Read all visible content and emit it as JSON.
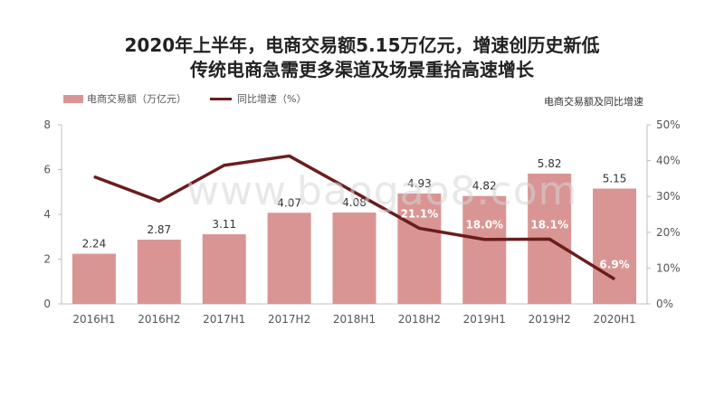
{
  "title_line1": "2020年上半年，电商交易额5.15万亿元，增速创历史新低",
  "title_line2": "传统电商急需更多渠道及场景重拾高速增长",
  "watermark": "www.baogao8.com",
  "chart_data": {
    "type": "bar",
    "title": "电商交易额及同比增速",
    "categories": [
      "2016H1",
      "2016H2",
      "2017H1",
      "2017H2",
      "2018H1",
      "2018H2",
      "2019H1",
      "2019H2",
      "2020H1"
    ],
    "series": [
      {
        "name": "电商交易额（万亿元）",
        "type": "bar",
        "axis": "left",
        "values": [
          2.24,
          2.87,
          3.11,
          4.07,
          4.08,
          4.93,
          4.82,
          5.82,
          5.15
        ],
        "labels": [
          "2.24",
          "2.87",
          "3.11",
          "4.07",
          "4.08",
          "4.93",
          "4.82",
          "5.82",
          "5.15"
        ]
      },
      {
        "name": "同比增速（%）",
        "type": "line",
        "axis": "right",
        "values": [
          35.5,
          28.7,
          38.7,
          41.3,
          31.2,
          21.1,
          18.0,
          18.1,
          6.9
        ],
        "point_labels": [
          "",
          "",
          "",
          "",
          "",
          "21.1%",
          "18.0%",
          "18.1%",
          "6.9%"
        ]
      }
    ],
    "y_left": {
      "min": 0,
      "max": 8,
      "ticks": [
        "0",
        "2",
        "4",
        "6",
        "8"
      ],
      "values": [
        0,
        2,
        4,
        6,
        8
      ]
    },
    "y_right": {
      "min": 0,
      "max": 50,
      "ticks": [
        "0%",
        "10%",
        "20%",
        "30%",
        "40%",
        "50%"
      ],
      "values": [
        0,
        10,
        20,
        30,
        40,
        50
      ]
    },
    "legend_placement": "top-left",
    "grid": false,
    "colors": {
      "bar": "#d99594",
      "line": "#6b1d1d"
    }
  }
}
